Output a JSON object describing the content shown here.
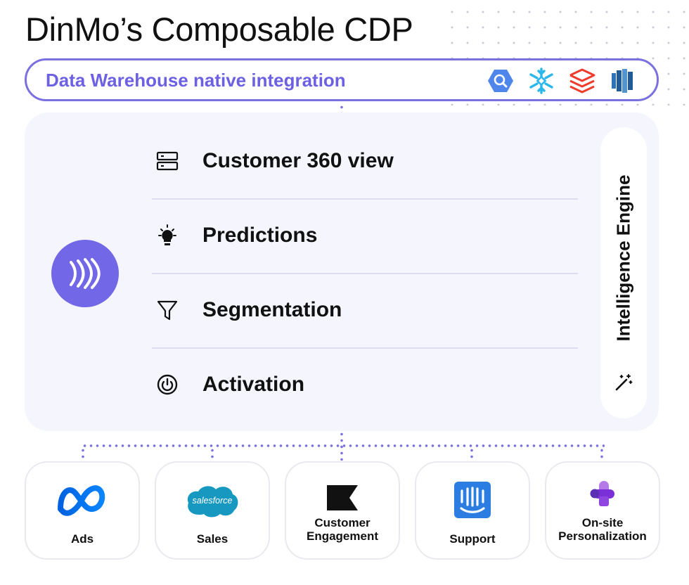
{
  "title": "DinMo’s Composable CDP",
  "warehouse": {
    "label": "Data Warehouse native integration",
    "icons": [
      "bigquery-icon",
      "snowflake-icon",
      "databricks-icon",
      "redshift-icon"
    ]
  },
  "features": [
    {
      "label": "Customer 360 view",
      "icon": "database-icon"
    },
    {
      "label": "Predictions",
      "icon": "lightbulb-icon"
    },
    {
      "label": "Segmentation",
      "icon": "filter-icon"
    },
    {
      "label": "Activation",
      "icon": "power-icon"
    }
  ],
  "engine": {
    "label": "Intelligence Engine",
    "icon": "magic-wand-icon"
  },
  "destinations": [
    {
      "label": "Ads",
      "icon": "meta-icon"
    },
    {
      "label": "Sales",
      "icon": "salesforce-icon",
      "icon_text": "salesforce"
    },
    {
      "label": "Customer\nEngagement",
      "icon": "klaviyo-icon"
    },
    {
      "label": "Support",
      "icon": "intercom-icon"
    },
    {
      "label": "On-site\nPersonalization",
      "icon": "google-optimize-icon"
    }
  ],
  "colors": {
    "accent": "#6c60e3",
    "panel": "#f4f5fd",
    "logo": "#7267e6"
  }
}
